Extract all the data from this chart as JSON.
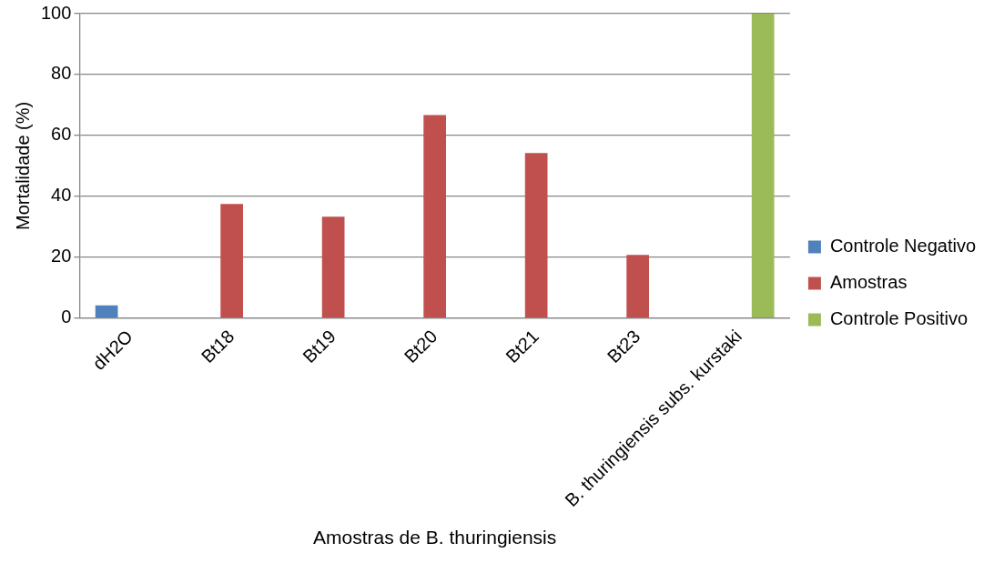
{
  "chart_data": {
    "type": "bar",
    "xlabel": "Amostras de B. thuringiensis",
    "ylabel": "Mortalidade (%)",
    "categories": [
      "dH2O",
      "Bt18",
      "Bt19",
      "Bt20",
      "Bt21",
      "Bt23",
      "B. thuringiensis subs. kurstaki"
    ],
    "series": [
      {
        "name": "Controle Negativo",
        "color": "#4f81bd",
        "values": [
          4.2,
          null,
          null,
          null,
          null,
          null,
          null
        ]
      },
      {
        "name": "Amostras",
        "color": "#c0504d",
        "values": [
          null,
          37.5,
          33.3,
          66.7,
          54.2,
          20.8,
          null
        ]
      },
      {
        "name": "Controle Positivo",
        "color": "#9bbb59",
        "values": [
          null,
          null,
          null,
          null,
          null,
          null,
          100
        ]
      }
    ],
    "ylim": [
      0,
      100
    ],
    "yticks": [
      0,
      20,
      40,
      60,
      80,
      100
    ],
    "grid": "y",
    "legend": "right"
  }
}
